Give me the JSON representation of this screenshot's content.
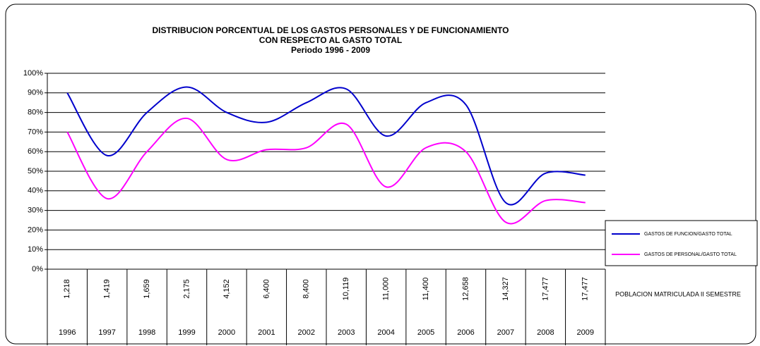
{
  "chart_data": {
    "type": "line",
    "title": [
      "DISTRIBUCION PORCENTUAL DE LOS GASTOS PERSONALES Y DE FUNCIONAMIENTO",
      "CON RESPECTO AL GASTO TOTAL",
      "Periodo 1996 - 2009"
    ],
    "categories": [
      "1996",
      "1997",
      "1998",
      "1999",
      "2000",
      "2001",
      "2002",
      "2003",
      "2004",
      "2005",
      "2006",
      "2007",
      "2008",
      "2009"
    ],
    "series": [
      {
        "name": "GASTOS DE FUNCION/GASTO TOTAL",
        "color": "#0000cc",
        "values": [
          90,
          58,
          80,
          93,
          80,
          75,
          85,
          92,
          68,
          85,
          84,
          34,
          49,
          48
        ]
      },
      {
        "name": "GASTOS DE PERSONAL/GASTO TOTAL",
        "color": "#ff00ff",
        "values": [
          70,
          36,
          60,
          77,
          56,
          61,
          62,
          74,
          42,
          62,
          60,
          24,
          35,
          34
        ]
      }
    ],
    "table_row": {
      "name": "POBLACION MATRICULADA II SEMESTRE",
      "values": [
        1218,
        1419,
        1659,
        2175,
        4152,
        6400,
        8400,
        10119,
        11000,
        11400,
        12658,
        14327,
        17477,
        17477
      ],
      "value_labels": [
        "1,218",
        "1,419",
        "1,659",
        "2,175",
        "4,152",
        "6,400",
        "8,400",
        "10,119",
        "11,000",
        "11,400",
        "12,658",
        "14,327",
        "17,477",
        "17,477"
      ]
    },
    "ylim": [
      0,
      100
    ],
    "yticks": [
      {
        "value": 0,
        "label": "0%"
      },
      {
        "value": 10,
        "label": "10%"
      },
      {
        "value": 20,
        "label": "20%"
      },
      {
        "value": 30,
        "label": "30%"
      },
      {
        "value": 40,
        "label": "40%"
      },
      {
        "value": 50,
        "label": "50%"
      },
      {
        "value": 60,
        "label": "60%"
      },
      {
        "value": 70,
        "label": "70%"
      },
      {
        "value": 80,
        "label": "80%"
      },
      {
        "value": 90,
        "label": "90%"
      },
      {
        "value": 100,
        "label": "100%"
      }
    ],
    "grid": true
  }
}
